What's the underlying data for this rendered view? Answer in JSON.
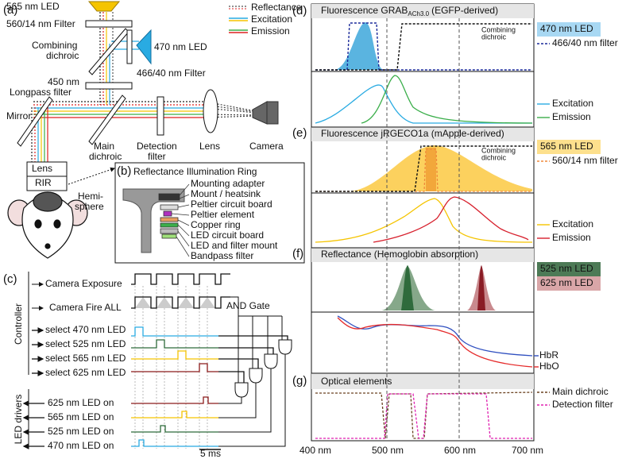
{
  "panel_a": {
    "label": "(a)",
    "legend": [
      "Reflectance",
      "Excitation",
      "Emission"
    ],
    "led_565": "565 nm LED",
    "filter_560": "560/14 nm Filter",
    "combining_dichroic": [
      "Combining",
      "dichroic"
    ],
    "led_470": "470 nm LED",
    "filter_466": "466/40 nm Filter",
    "longpass": [
      "450 nm",
      "Longpass filter"
    ],
    "mirror": "Mirror",
    "main_dichroic": [
      "Main",
      "dichroic"
    ],
    "detection_filter": [
      "Detection",
      "filter"
    ],
    "lens": "Lens",
    "camera": "Camera",
    "head_lens": "Lens",
    "rir": "RIR",
    "hemisphere": [
      "Hemi-",
      "sphere"
    ]
  },
  "panel_b": {
    "label": "(b)",
    "title": "Reflectance Illumination Ring",
    "parts": [
      "Mounting adapter",
      "Mount / heatsink",
      "Peltier circuit board",
      "Peltier element",
      "Copper ring",
      "LED circuit board",
      "LED and filter mount",
      "Bandpass filter"
    ]
  },
  "panel_c": {
    "label": "(c)",
    "camera_exposure": "Camera Exposure",
    "camera_fire": "Camera Fire ALL",
    "and_gate": "AND Gate",
    "selects": [
      "select 470 nm LED",
      "select 525 nm LED",
      "select 565 nm LED",
      "select 625 nm LED"
    ],
    "led_on": [
      "625 nm LED on",
      "565 nm LED on",
      "525 nm LED on",
      "470 nm LED on"
    ],
    "controller": "Controller",
    "led_drivers": "LED drivers",
    "scale": "5 ms"
  },
  "panel_d": {
    "label": "(d)",
    "title": [
      "Fluorescence GRAB",
      "ACh3.0",
      "(EGFP-derived)"
    ],
    "led": "470 nm LED",
    "filter": "466/40 nm filter",
    "dichroic": [
      "Combining",
      "dichroic"
    ],
    "excitation": "Excitation",
    "emission": "Emission"
  },
  "panel_e": {
    "label": "(e)",
    "title": "Fluorescence jRGECO1a (mApple-derived)",
    "led": "565 nm LED",
    "filter": "560/14 nm filter",
    "dichroic": [
      "Combining",
      "dichroic"
    ],
    "excitation": "Excitation",
    "emission": "Emission"
  },
  "panel_f": {
    "label": "(f)",
    "title": "Reflectance (Hemoglobin absorption)",
    "led_525": "525 nm LED",
    "led_625": "625 nm LED",
    "hbr": "HbR",
    "hbo": "HbO"
  },
  "panel_g": {
    "label": "(g)",
    "title": "Optical elements",
    "main_dichroic": "Main dichroic",
    "detection_filter": "Detection filter"
  },
  "x_axis": [
    "400 nm",
    "500 nm",
    "600 nm",
    "700 nm"
  ]
}
